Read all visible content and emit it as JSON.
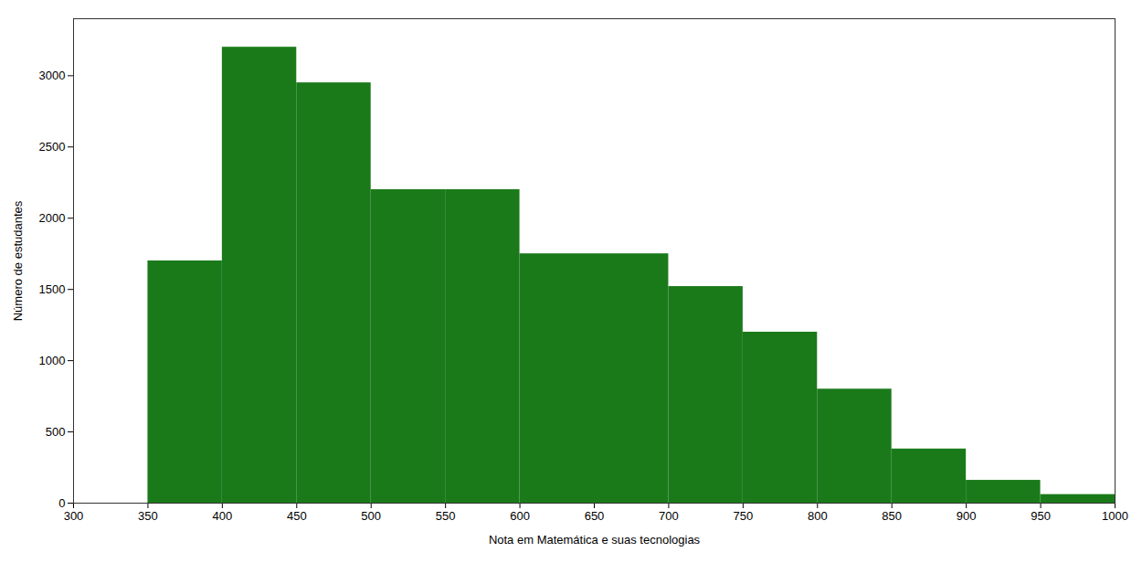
{
  "chart_data": {
    "type": "histogram",
    "bins": [
      350,
      400,
      450,
      500,
      550,
      600,
      650,
      700,
      750,
      800,
      850,
      900,
      950,
      1000
    ],
    "values": [
      1700,
      3200,
      2950,
      2200,
      2200,
      1750,
      1750,
      1520,
      1200,
      800,
      380,
      160,
      60
    ],
    "color": "#1a7a1a",
    "xlabel": "Nota em Matemática e suas tecnologias",
    "ylabel": "Número de estudantes",
    "xlim": [
      300,
      1000
    ],
    "ylim": [
      0,
      3400
    ],
    "xticks": [
      300,
      350,
      400,
      450,
      500,
      550,
      600,
      650,
      700,
      750,
      800,
      850,
      900,
      950,
      1000
    ],
    "yticks": [
      0,
      500,
      1000,
      1500,
      2000,
      2500,
      3000
    ],
    "grid": false
  }
}
